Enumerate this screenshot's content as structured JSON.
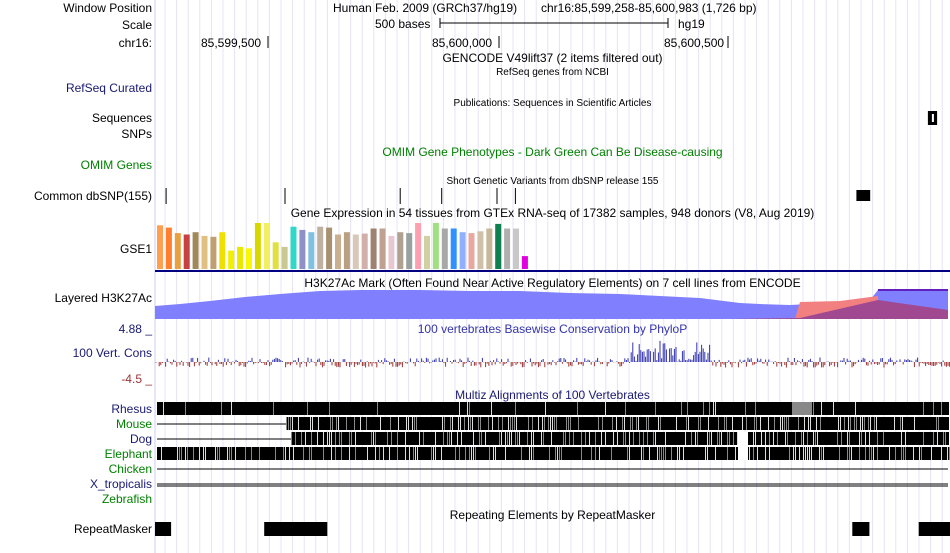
{
  "header": {
    "window_position_label": "Window Position",
    "scale_label": "Scale",
    "chrom_label": "chr16:",
    "assembly": "Human Feb. 2009 (GRCh37/hg19)",
    "position": "chr16:85,599,258-85,600,983 (1,726 bp)",
    "scale_text": "500 bases",
    "db": "hg19",
    "ticks": [
      "85,599,500",
      "85,600,000",
      "85,600,500"
    ]
  },
  "tracks": {
    "gencode_title": "GENCODE V49lift37 (2 items filtered out)",
    "refseq_label": "RefSeq Curated",
    "refseq_title": "RefSeq genes from NCBI",
    "publications_title": "Publications: Sequences in Scientific Articles",
    "sequences_label": "Sequences",
    "snps_label": "SNPs",
    "omim_label": "OMIM Genes",
    "omim_title": "OMIM Gene Phenotypes - Dark Green Can Be Disease-causing",
    "dbsnp_title": "Short Genetic Variants from dbSNP release 155",
    "dbsnp_label": "Common dbSNP(155)",
    "gtex_title": "Gene Expression in 54 tissues from GTEx RNA-seq of 17382 samples, 948 donors (V8, Aug 2019)",
    "gtex_label": "GSE1",
    "h3k27_label": "Layered H3K27Ac",
    "h3k27_title": "H3K27Ac Mark (Often Found Near Active Regulatory Elements) on 7 cell lines from ENCODE",
    "cons_max": "4.88 _",
    "cons_label": "100 Vert. Cons",
    "cons_min": "-4.5 _",
    "cons_title": "100 vertebrates Basewise Conservation by PhyloP",
    "multiz_title": "Multiz Alignments of 100 Vertebrates",
    "species": [
      "Rhesus",
      "Mouse",
      "Dog",
      "Elephant",
      "Chicken",
      "X_tropicalis",
      "Zebrafish"
    ],
    "repeat_title": "Repeating Elements by RepeatMasker",
    "repeat_label": "RepeatMasker"
  },
  "colors": {
    "navy": "#191970",
    "green": "#008000",
    "cons_pos": "#3333aa",
    "cons_neg": "#993333",
    "h3k27_fill": "#8080ff"
  },
  "gtex_bar_colors": [
    "#ff9f4f",
    "#ff7f2f",
    "#e8a040",
    "#c84040",
    "#a08858",
    "#e0c080",
    "#c0a070",
    "#f0e000",
    "#f0f000",
    "#e8e800",
    "#f8f800",
    "#d8d800",
    "#f0f060",
    "#e0e040",
    "#c8c890",
    "#30d8c8",
    "#9090c8",
    "#80c0e0",
    "#c0b0a0",
    "#a89070",
    "#c8b090",
    "#b8a080",
    "#d8c8b8",
    "#d0b0a8",
    "#a08070",
    "#c0a090",
    "#e8c8d0",
    "#b0a090",
    "#98a0a0",
    "#ffa0b0",
    "#d0d0a0",
    "#a0e080",
    "#a8a8a8",
    "#3090ff",
    "#90b0ff",
    "#e8a8a0",
    "#d0c0a8",
    "#c8b898",
    "#108050",
    "#b0b0b0",
    "#c8c8c8",
    "#e000e0"
  ],
  "gtex_bar_values": [
    0.95,
    0.9,
    0.78,
    0.75,
    0.8,
    0.72,
    0.7,
    0.8,
    0.4,
    0.48,
    0.45,
    1.0,
    1.0,
    0.58,
    0.48,
    0.92,
    0.85,
    0.8,
    0.92,
    0.9,
    0.75,
    0.8,
    0.75,
    0.77,
    0.88,
    0.88,
    0.72,
    0.8,
    0.78,
    1.0,
    0.72,
    1.0,
    0.88,
    0.88,
    0.8,
    0.78,
    0.82,
    0.88,
    0.98,
    0.88,
    0.88,
    0.28
  ],
  "dbsnp_positions_bp": [
    85599282,
    85599540,
    85599790,
    85599880,
    85600000,
    85600040
  ],
  "dbsnp_block_bp": [
    85600780,
    85600810
  ],
  "sequences_block_bp": [
    85600935,
    85600955
  ],
  "repeat_blocks_bp": [
    [
      85599258,
      85599293
    ],
    [
      85599495,
      85599632
    ],
    [
      85600771,
      85600808
    ],
    [
      85600915,
      85600983
    ]
  ]
}
